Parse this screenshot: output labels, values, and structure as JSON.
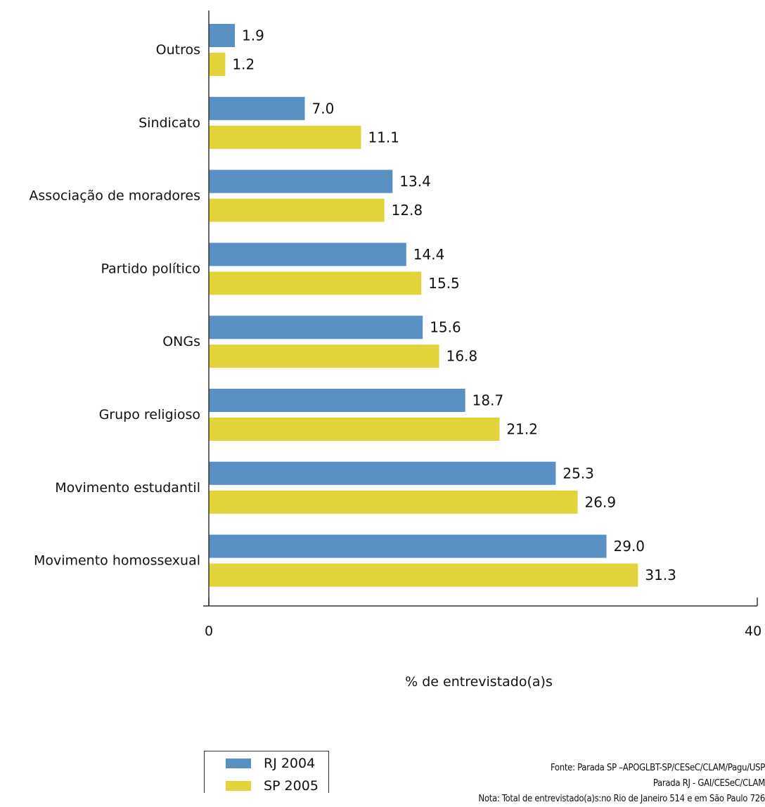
{
  "chart_data": {
    "type": "bar",
    "orientation": "horizontal",
    "categories": [
      "Outros",
      "Sindicato",
      "Associação de moradores",
      "Partido político",
      "ONGs",
      "Grupo religioso",
      "Movimento estudantil",
      "Movimento homossexual"
    ],
    "series": [
      {
        "name": "RJ 2004",
        "color": "#5a8fc4",
        "values": [
          1.9,
          7.0,
          13.4,
          14.4,
          15.6,
          18.7,
          25.3,
          29.0
        ],
        "labels": [
          "1.9",
          "7.0",
          "13.4",
          "14.4",
          "15.6",
          "18.7",
          "25.3",
          "29.0"
        ]
      },
      {
        "name": "SP 2005",
        "color": "#e3d33b",
        "values": [
          1.2,
          11.1,
          12.8,
          15.5,
          16.8,
          21.2,
          26.9,
          31.3
        ],
        "labels": [
          "1.2",
          "11.1",
          "12.8",
          "15.5",
          "16.8",
          "21.2",
          "26.9",
          "31.3"
        ]
      }
    ],
    "xlabel": "% de entrevistado(a)s",
    "ylabel": "",
    "xlim": [
      0,
      40
    ],
    "xticks": [
      "0",
      "40"
    ],
    "grid": false,
    "legend_position": "bottom-left"
  },
  "notes": {
    "line1": "Fonte: Parada SP –APOGLBT-SP/CESeC/CLAM/Pagu/USP",
    "line2": "Parada RJ -  GAI/CESeC/CLAM",
    "line3": "Nota: Total de entrevistado(a)s:no Rio de Janeiro 514  e em São Paulo 726"
  }
}
